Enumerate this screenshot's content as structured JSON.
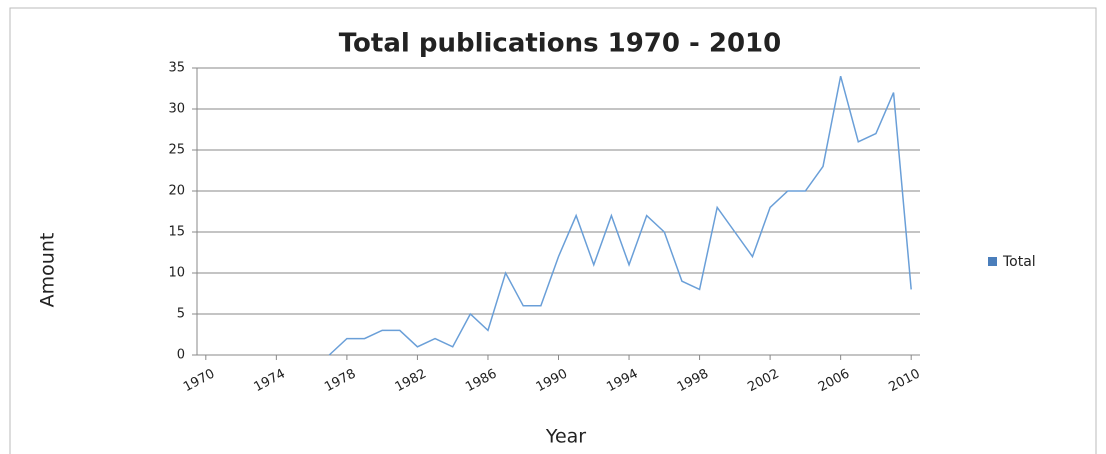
{
  "chart_data": {
    "type": "line",
    "title": "Total publications 1970 - 2010",
    "x_label": "Year",
    "y_label": "Amount",
    "x": [
      1970,
      1971,
      1972,
      1973,
      1974,
      1975,
      1976,
      1977,
      1978,
      1979,
      1980,
      1981,
      1982,
      1983,
      1984,
      1985,
      1986,
      1987,
      1988,
      1989,
      1990,
      1991,
      1992,
      1993,
      1994,
      1995,
      1996,
      1997,
      1998,
      1999,
      2000,
      2001,
      2002,
      2003,
      2004,
      2005,
      2006,
      2007,
      2008,
      2009,
      2010
    ],
    "series": [
      {
        "name": "Total",
        "color": "#4a7ebb",
        "values": [
          null,
          null,
          null,
          null,
          null,
          null,
          null,
          0,
          2,
          2,
          3,
          3,
          1,
          2,
          1,
          5,
          3,
          10,
          6,
          6,
          12,
          17,
          11,
          17,
          11,
          17,
          15,
          9,
          8,
          18,
          15,
          12,
          18,
          20,
          20,
          23,
          34,
          26,
          27,
          32,
          8
        ]
      }
    ],
    "xlim": [
      1969.5,
      2010.5
    ],
    "xticks": [
      1970,
      1974,
      1978,
      1982,
      1986,
      1990,
      1994,
      1998,
      2002,
      2006,
      2010
    ],
    "ylim": [
      0,
      35
    ],
    "yticks": [
      0,
      5,
      10,
      15,
      20,
      25,
      30,
      35
    ],
    "grid": true,
    "legend": "right"
  }
}
